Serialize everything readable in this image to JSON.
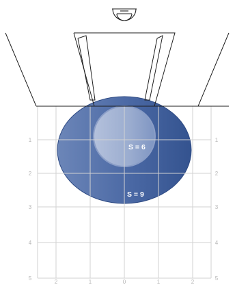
{
  "colors": {
    "outer_area": "#3a5b97",
    "inner_area": "#aab8d6",
    "grid": "#d2d2d2",
    "outline": "#1e1e1e",
    "axis_text": "#b5b5b5",
    "label_text": "#ffffff"
  },
  "diagram": {
    "icon": "ceiling-mounted-sensor-icon",
    "detection_areas": [
      {
        "label": "S = 6"
      },
      {
        "label": "S = 9"
      }
    ],
    "left_axis": [
      "1",
      "2",
      "3",
      "4",
      "5"
    ],
    "right_axis": [
      "1",
      "2",
      "3",
      "4",
      "5"
    ],
    "bottom_axis": [
      "2",
      "1",
      "0",
      "1",
      "2"
    ]
  }
}
